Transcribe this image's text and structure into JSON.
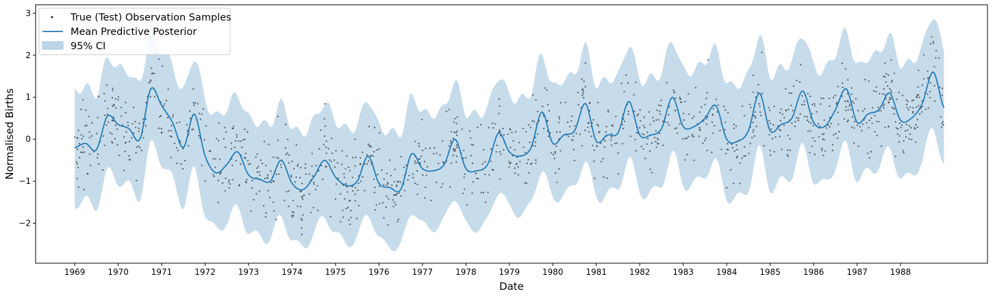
{
  "chart_data": {
    "type": "line",
    "title": "",
    "xlabel": "Date",
    "ylabel": "Normalised Births",
    "xlim": [
      1968.1,
      1990.0
    ],
    "ylim": [
      -2.95,
      3.2
    ],
    "x_ticks": [
      "1969",
      "1970",
      "1971",
      "1972",
      "1973",
      "1974",
      "1975",
      "1976",
      "1977",
      "1978",
      "1979",
      "1980",
      "1981",
      "1982",
      "1983",
      "1984",
      "1985",
      "1986",
      "1987",
      "1988"
    ],
    "y_ticks": [
      -2,
      -1,
      0,
      1,
      2,
      3
    ],
    "grid": false,
    "legend_position": "top-left",
    "legend": {
      "samples": "True (Test) Observation Samples",
      "mean": "Mean Predictive Posterior",
      "ci": "95% CI"
    },
    "colors": {
      "mean": "#1f77b4",
      "ci": "#bcd6e7",
      "samples": "#333333"
    },
    "mean_series": {
      "x": [
        1969.0,
        1969.25,
        1969.5,
        1969.75,
        1970.0,
        1970.25,
        1970.5,
        1970.75,
        1971.0,
        1971.25,
        1971.5,
        1971.75,
        1972.0,
        1972.25,
        1972.5,
        1972.75,
        1973.0,
        1973.25,
        1973.5,
        1973.75,
        1974.0,
        1974.25,
        1974.5,
        1974.75,
        1975.0,
        1975.25,
        1975.5,
        1975.75,
        1976.0,
        1976.25,
        1976.5,
        1976.75,
        1977.0,
        1977.25,
        1977.5,
        1977.75,
        1978.0,
        1978.25,
        1978.5,
        1978.75,
        1979.0,
        1979.25,
        1979.5,
        1979.75,
        1980.0,
        1980.25,
        1980.5,
        1980.75,
        1981.0,
        1981.25,
        1981.5,
        1981.75,
        1982.0,
        1982.25,
        1982.5,
        1982.75,
        1983.0,
        1983.25,
        1983.5,
        1983.75,
        1984.0,
        1984.25,
        1984.5,
        1984.75,
        1985.0,
        1985.25,
        1985.5,
        1985.75,
        1986.0,
        1986.25,
        1986.5,
        1986.75,
        1987.0,
        1987.25,
        1987.5,
        1987.75,
        1988.0,
        1988.25,
        1988.5,
        1988.75,
        1989.0
      ],
      "y": [
        -0.2,
        -0.1,
        -0.25,
        0.55,
        0.35,
        0.25,
        0.0,
        1.2,
        0.8,
        0.4,
        -0.2,
        0.6,
        -0.4,
        -0.8,
        -0.6,
        -0.3,
        -0.85,
        -0.95,
        -1.0,
        -0.5,
        -1.05,
        -1.2,
        -0.9,
        -0.5,
        -0.9,
        -1.1,
        -1.0,
        -0.4,
        -1.05,
        -1.15,
        -1.2,
        -0.35,
        -0.7,
        -0.75,
        -0.6,
        0.0,
        -0.7,
        -0.75,
        -0.6,
        0.15,
        -0.3,
        -0.4,
        -0.2,
        0.65,
        -0.1,
        0.1,
        0.2,
        0.85,
        -0.05,
        0.1,
        0.15,
        0.9,
        0.1,
        0.1,
        0.25,
        1.0,
        0.3,
        0.3,
        0.5,
        0.8,
        0.0,
        -0.05,
        0.2,
        1.1,
        0.2,
        0.35,
        0.5,
        1.15,
        0.4,
        0.3,
        0.7,
        1.2,
        0.4,
        0.6,
        0.7,
        1.1,
        0.45,
        0.5,
        0.85,
        1.6,
        0.75
      ],
      "ci_half_width": 1.35
    },
    "samples_series": {
      "name": "True (Test) Observation Samples",
      "count": 1300,
      "spread": 0.85
    }
  }
}
